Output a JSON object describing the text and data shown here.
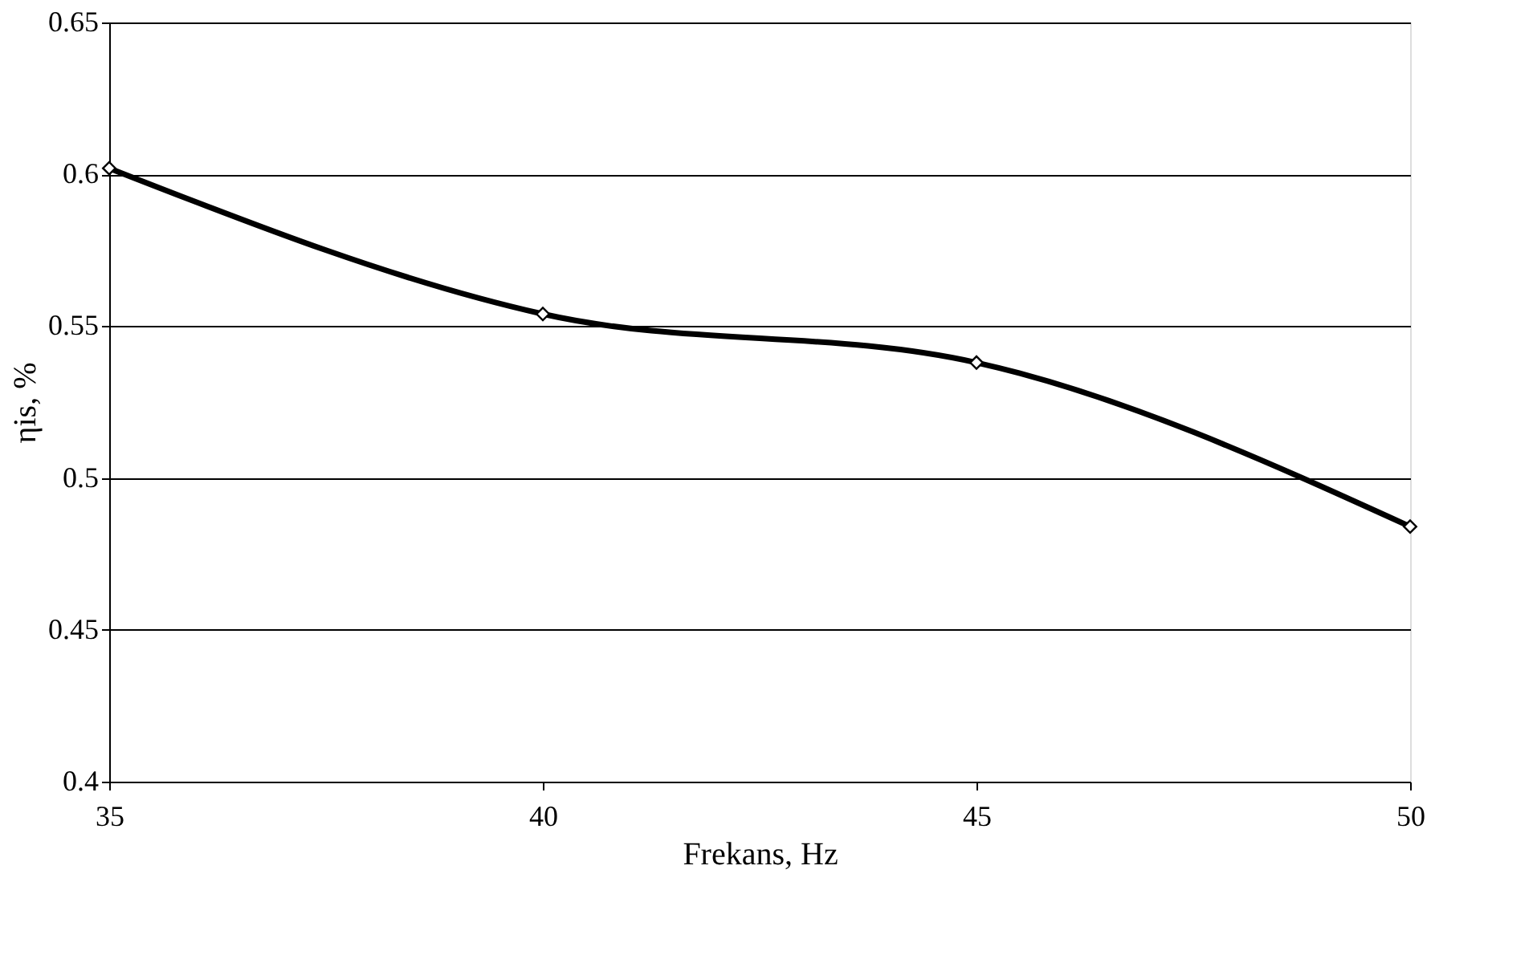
{
  "chart_data": {
    "type": "line",
    "xlabel": "Frekans, Hz",
    "ylabel": "ηis, %",
    "x": [
      35,
      40,
      45,
      50
    ],
    "series": [
      {
        "color": "#000000",
        "values": [
          0.602,
          0.554,
          0.538,
          0.484
        ]
      }
    ],
    "xlim": [
      35,
      50
    ],
    "xticks": [
      35,
      40,
      45,
      50
    ],
    "ylim": [
      0.4,
      0.65
    ],
    "yticks": [
      0.4,
      0.45,
      0.5,
      0.55,
      0.6,
      0.65
    ],
    "grid": "y",
    "marker": "diamond",
    "line_style": "solid"
  }
}
